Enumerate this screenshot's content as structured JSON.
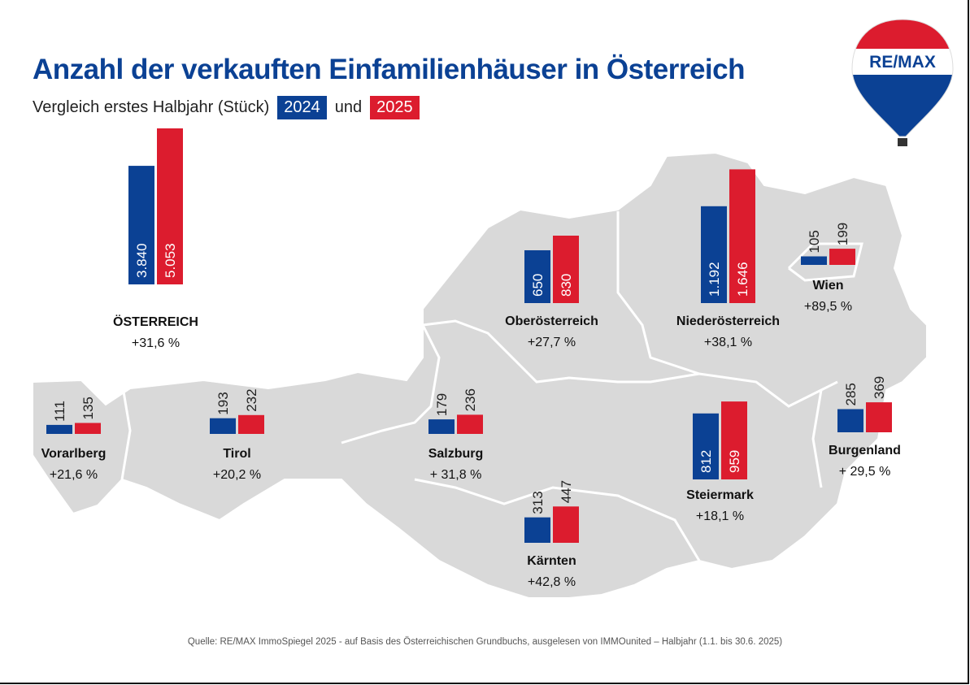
{
  "title": "Anzahl der verkauften Einfamilienhäuser in Österreich",
  "subtitle": {
    "text": "Vergleich erstes Halbjahr (Stück)",
    "and": "und"
  },
  "source": "Quelle: RE/MAX ImmoSpiegel 2025 - auf Basis des Österreichischen Grundbuchs, ausgelesen von IMMOunited – Halbjahr (1.1. bis 30.6. 2025)",
  "logo": {
    "text": "RE/MAX",
    "colors": {
      "red": "#dc1c2e",
      "blue": "#0b4194"
    }
  },
  "colors": {
    "2024": "#0b4194",
    "2025": "#dc1c2e",
    "map": "#d9d9d9",
    "title": "#0b4194"
  },
  "chart_data": {
    "type": "bar",
    "legend": [
      "2024",
      "2025"
    ],
    "series": [
      {
        "name": "2024"
      },
      {
        "name": "2025"
      }
    ],
    "regions": [
      {
        "name": "ÖSTERREICH",
        "v2024": 3840,
        "v2025": 5053,
        "label2024": "3.840",
        "label2025": "5.053",
        "change": "+31,6 %"
      },
      {
        "name": "Vorarlberg",
        "v2024": 111,
        "v2025": 135,
        "label2024": "111",
        "label2025": "135",
        "change": "+21,6 %"
      },
      {
        "name": "Tirol",
        "v2024": 193,
        "v2025": 232,
        "label2024": "193",
        "label2025": "232",
        "change": "+20,2 %"
      },
      {
        "name": "Salzburg",
        "v2024": 179,
        "v2025": 236,
        "label2024": "179",
        "label2025": "236",
        "change": "+ 31,8 %"
      },
      {
        "name": "Oberösterreich",
        "v2024": 650,
        "v2025": 830,
        "label2024": "650",
        "label2025": "830",
        "change": "+27,7 %"
      },
      {
        "name": "Niederösterreich",
        "v2024": 1192,
        "v2025": 1646,
        "label2024": "1.192",
        "label2025": "1.646",
        "change": "+38,1 %"
      },
      {
        "name": "Wien",
        "v2024": 105,
        "v2025": 199,
        "label2024": "105",
        "label2025": "199",
        "change": "+89,5 %"
      },
      {
        "name": "Burgenland",
        "v2024": 285,
        "v2025": 369,
        "label2024": "285",
        "label2025": "369",
        "change": "+ 29,5 %"
      },
      {
        "name": "Steiermark",
        "v2024": 812,
        "v2025": 959,
        "label2024": "812",
        "label2025": "959",
        "change": "+18,1 %"
      },
      {
        "name": "Kärnten",
        "v2024": 313,
        "v2025": 447,
        "label2024": "313",
        "label2025": "447",
        "change": "+42,8 %"
      }
    ]
  }
}
